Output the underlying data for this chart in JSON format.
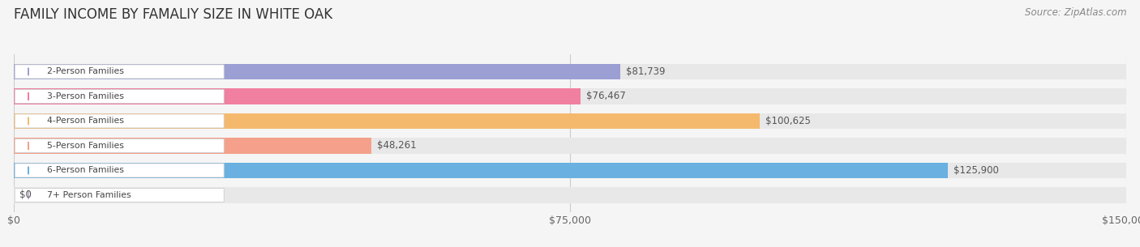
{
  "title": "FAMILY INCOME BY FAMALIY SIZE IN WHITE OAK",
  "source": "Source: ZipAtlas.com",
  "categories": [
    "2-Person Families",
    "3-Person Families",
    "4-Person Families",
    "5-Person Families",
    "6-Person Families",
    "7+ Person Families"
  ],
  "values": [
    81739,
    76467,
    100625,
    48261,
    125900,
    0
  ],
  "bar_colors": [
    "#9b9fd4",
    "#f07fa0",
    "#f5b96e",
    "#f4a08a",
    "#6ab0e0",
    "#c9b8d8"
  ],
  "value_labels": [
    "$81,739",
    "$76,467",
    "$100,625",
    "$48,261",
    "$125,900",
    "$0"
  ],
  "xlim": [
    0,
    150000
  ],
  "xticks": [
    0,
    75000,
    150000
  ],
  "xtick_labels": [
    "$0",
    "$75,000",
    "$150,000"
  ],
  "background_color": "#f5f5f5",
  "bar_bg_color": "#e8e8e8",
  "title_fontsize": 12,
  "source_fontsize": 8.5,
  "bar_height": 0.65
}
